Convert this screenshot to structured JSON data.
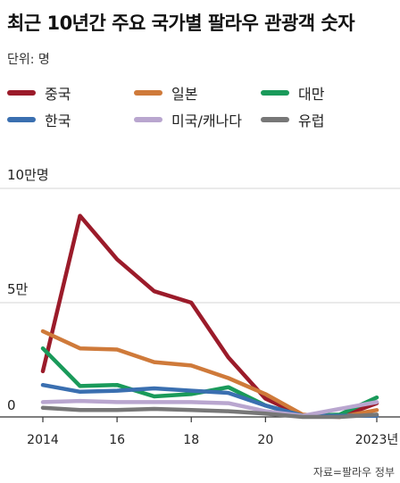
{
  "title": "최근 10년간 주요 국가별 팔라우 관광객 숫자",
  "unit": "단위: 명",
  "source": "자료=팔라우 정부",
  "chart_data": {
    "type": "line",
    "x": [
      2014,
      2015,
      2016,
      2017,
      2018,
      2019,
      2020,
      2021,
      2022,
      2023
    ],
    "xtick_labels": [
      {
        "x": 2014,
        "label": "2014"
      },
      {
        "x": 2016,
        "label": "16"
      },
      {
        "x": 2018,
        "label": "18"
      },
      {
        "x": 2020,
        "label": "20"
      },
      {
        "x": 2023,
        "label": "2023년"
      }
    ],
    "ytick_labels": [
      {
        "y": 0,
        "label": "0"
      },
      {
        "y": 50000,
        "label": "5만"
      },
      {
        "y": 100000,
        "label": "10만명"
      }
    ],
    "ylim": [
      0,
      100000
    ],
    "grid": true,
    "legend_placement": "top",
    "series": [
      {
        "name": "중국",
        "color": "#9b1b2a",
        "values": [
          20000,
          88000,
          69000,
          55000,
          50000,
          26000,
          8000,
          500,
          0,
          6000
        ]
      },
      {
        "name": "일본",
        "color": "#cf7a3a",
        "values": [
          37500,
          30000,
          29500,
          24000,
          22500,
          17000,
          10000,
          1000,
          0,
          3000
        ]
      },
      {
        "name": "대만",
        "color": "#1a9a5a",
        "values": [
          30000,
          13500,
          14000,
          9000,
          10000,
          13000,
          5000,
          500,
          1000,
          8500
        ]
      },
      {
        "name": "한국",
        "color": "#3a6fb0",
        "values": [
          14000,
          11000,
          11500,
          12500,
          11500,
          10500,
          5000,
          500,
          500,
          500
        ]
      },
      {
        "name": "미국/캐나다",
        "color": "#b9a6cf",
        "values": [
          6500,
          7000,
          6500,
          6500,
          6500,
          6000,
          2500,
          500,
          3500,
          6500
        ]
      },
      {
        "name": "유럽",
        "color": "#777777",
        "values": [
          4000,
          3000,
          3000,
          3500,
          3000,
          2500,
          1500,
          0,
          0,
          1000
        ]
      }
    ]
  }
}
